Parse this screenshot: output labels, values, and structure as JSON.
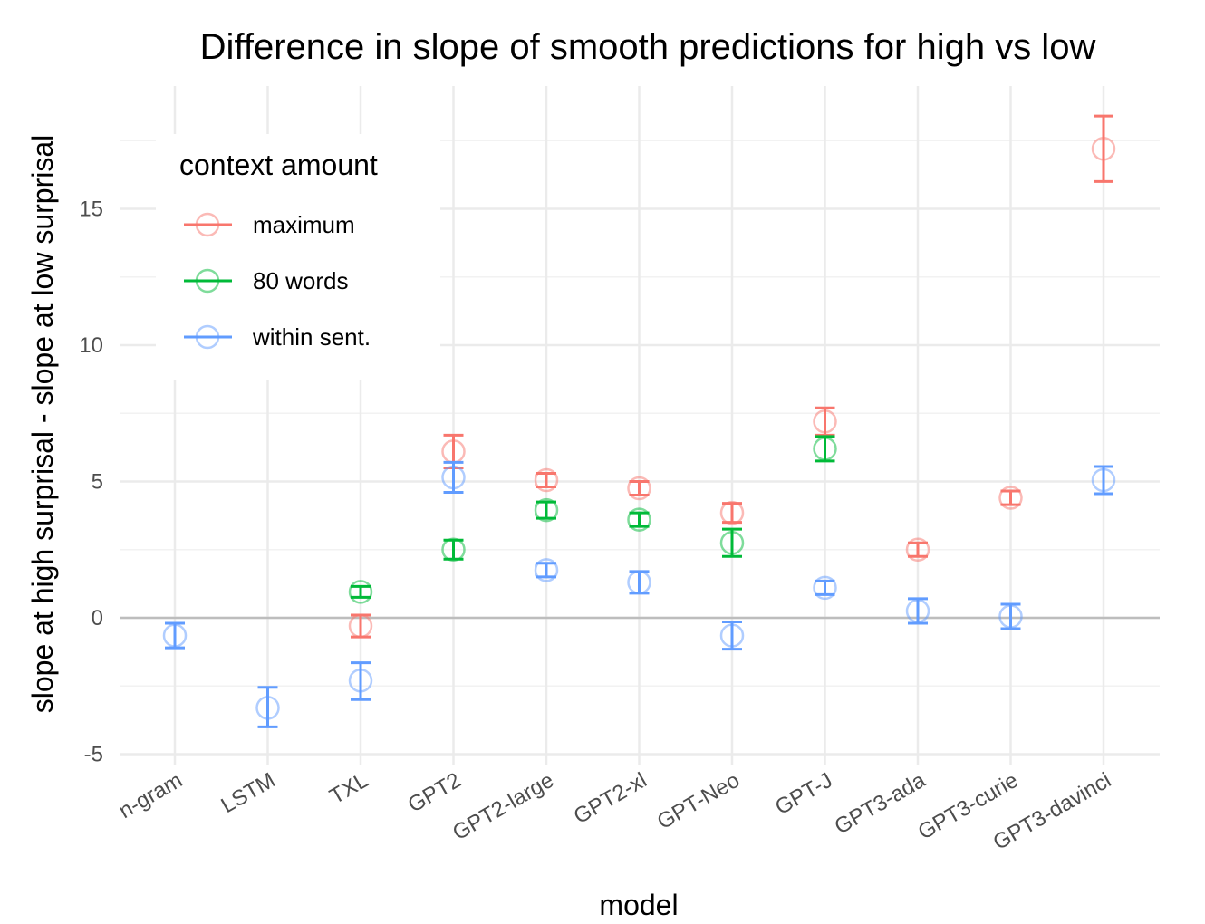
{
  "chart_data": {
    "type": "scatter",
    "title": "Difference in slope of smooth predictions for high vs low",
    "xlabel": "model",
    "ylabel": "slope at high surprisal - slope at low surprisal",
    "categories": [
      "n-gram",
      "LSTM",
      "TXL",
      "GPT2",
      "GPT2-large",
      "GPT2-xl",
      "GPT-Neo",
      "GPT-J",
      "GPT3-ada",
      "GPT3-curie",
      "GPT3-davinci"
    ],
    "ylim": [
      -5,
      18
    ],
    "yticks": [
      -5,
      0,
      5,
      10,
      15
    ],
    "ytick_labels": [
      "-5",
      "0",
      "5",
      "10",
      "15"
    ],
    "reference_line": 0,
    "grid": true,
    "legend": {
      "title": "context amount",
      "position": "top-left"
    },
    "series": [
      {
        "name": "maximum",
        "color": "#F8766D",
        "points": [
          {
            "category": "TXL",
            "y": -0.3,
            "low": -0.7,
            "high": 0.1
          },
          {
            "category": "GPT2",
            "y": 6.1,
            "low": 5.5,
            "high": 6.7
          },
          {
            "category": "GPT2-large",
            "y": 5.05,
            "low": 4.8,
            "high": 5.3
          },
          {
            "category": "GPT2-xl",
            "y": 4.75,
            "low": 4.5,
            "high": 5.0
          },
          {
            "category": "GPT-Neo",
            "y": 3.85,
            "low": 3.5,
            "high": 4.2
          },
          {
            "category": "GPT-J",
            "y": 7.2,
            "low": 6.7,
            "high": 7.7
          },
          {
            "category": "GPT3-ada",
            "y": 2.5,
            "low": 2.25,
            "high": 2.75
          },
          {
            "category": "GPT3-curie",
            "y": 4.4,
            "low": 4.15,
            "high": 4.65
          },
          {
            "category": "GPT3-davinci",
            "y": 17.2,
            "low": 16.0,
            "high": 18.4
          }
        ]
      },
      {
        "name": "80 words",
        "color": "#00BA38",
        "points": [
          {
            "category": "TXL",
            "y": 0.95,
            "low": 0.75,
            "high": 1.15
          },
          {
            "category": "GPT2",
            "y": 2.5,
            "low": 2.15,
            "high": 2.85
          },
          {
            "category": "GPT2-large",
            "y": 3.95,
            "low": 3.65,
            "high": 4.25
          },
          {
            "category": "GPT2-xl",
            "y": 3.6,
            "low": 3.35,
            "high": 3.85
          },
          {
            "category": "GPT-Neo",
            "y": 2.75,
            "low": 2.25,
            "high": 3.25
          },
          {
            "category": "GPT-J",
            "y": 6.2,
            "low": 5.75,
            "high": 6.65
          }
        ]
      },
      {
        "name": "within sent.",
        "color": "#619CFF",
        "points": [
          {
            "category": "n-gram",
            "y": -0.65,
            "low": -1.1,
            "high": -0.2
          },
          {
            "category": "LSTM",
            "y": -3.3,
            "low": -4.0,
            "high": -2.55
          },
          {
            "category": "TXL",
            "y": -2.3,
            "low": -3.0,
            "high": -1.65
          },
          {
            "category": "GPT2",
            "y": 5.15,
            "low": 4.6,
            "high": 5.7
          },
          {
            "category": "GPT2-large",
            "y": 1.75,
            "low": 1.5,
            "high": 2.0
          },
          {
            "category": "GPT2-xl",
            "y": 1.3,
            "low": 0.9,
            "high": 1.7
          },
          {
            "category": "GPT-Neo",
            "y": -0.65,
            "low": -1.15,
            "high": -0.15
          },
          {
            "category": "GPT-J",
            "y": 1.1,
            "low": 0.85,
            "high": 1.35
          },
          {
            "category": "GPT3-ada",
            "y": 0.25,
            "low": -0.2,
            "high": 0.7
          },
          {
            "category": "GPT3-curie",
            "y": 0.05,
            "low": -0.4,
            "high": 0.5
          },
          {
            "category": "GPT3-davinci",
            "y": 5.05,
            "low": 4.55,
            "high": 5.55
          }
        ]
      }
    ]
  }
}
